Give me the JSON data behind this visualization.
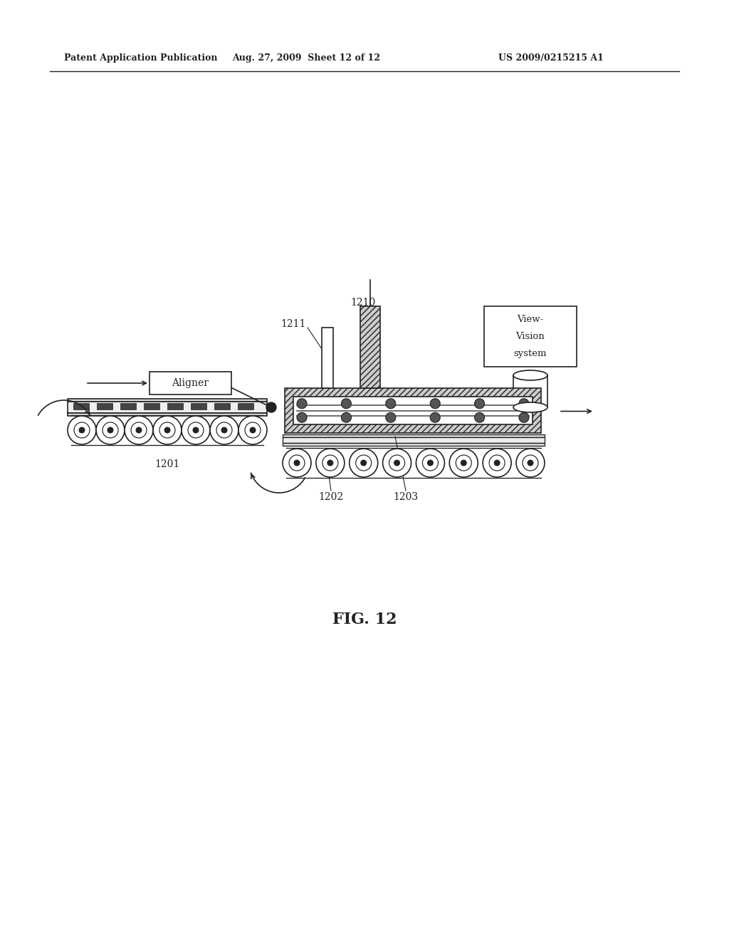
{
  "bg_color": "#ffffff",
  "header_left": "Patent Application Publication",
  "header_mid": "Aug. 27, 2009  Sheet 12 of 12",
  "header_right": "US 2009/0215215 A1",
  "fig_label": "FIG. 12",
  "dark": "#222222",
  "lw": 1.2
}
